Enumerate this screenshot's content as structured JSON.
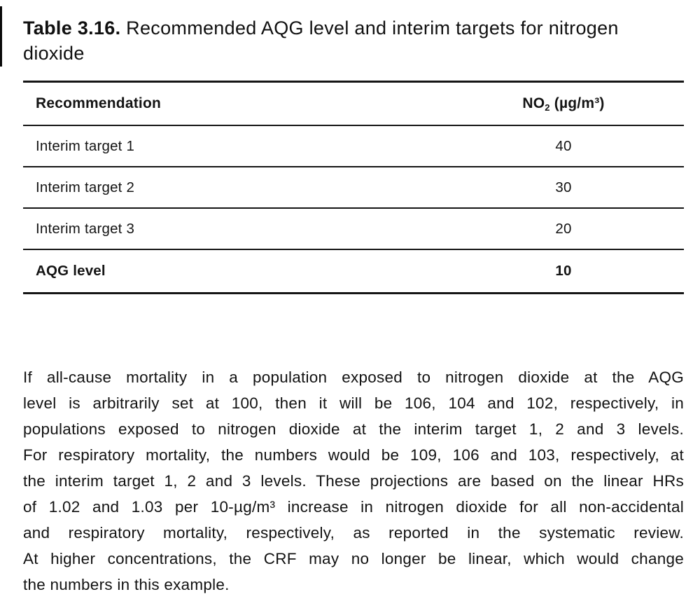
{
  "colors": {
    "text": "#141414",
    "rule": "#151515",
    "background": "#ffffff"
  },
  "caption": {
    "label": "Table 3.16.",
    "text": " Recommended AQG level and interim targets for nitrogen dioxide"
  },
  "table": {
    "header": {
      "col1": "Recommendation",
      "col2": {
        "base": "NO",
        "sub": "2",
        "rest": " (µg/m³)"
      }
    },
    "rows": [
      {
        "label": "Interim target 1",
        "value": "40"
      },
      {
        "label": "Interim target 2",
        "value": "30"
      },
      {
        "label": "Interim target 3",
        "value": "20"
      },
      {
        "label": "AQG level",
        "value": "10"
      }
    ]
  },
  "paragraph": {
    "lines": [
      "If all-cause mortality in a population exposed to nitrogen dioxide at the AQG",
      "level is arbitrarily set at 100, then it will be 106, 104 and 102, respectively, in",
      "populations exposed to nitrogen dioxide at the interim target 1, 2 and 3 levels.",
      "For respiratory mortality, the numbers would be 109, 106 and 103, respectively, at",
      "the interim target 1, 2 and 3 levels. These projections are based on the linear HRs",
      "of 1.02 and 1.03 per 10-µg/m³ increase in nitrogen dioxide for all non-accidental",
      "and respiratory mortality, respectively, as reported in the systematic review.",
      "At higher concentrations, the CRF may no longer be linear, which would change",
      "the numbers in this example."
    ]
  }
}
